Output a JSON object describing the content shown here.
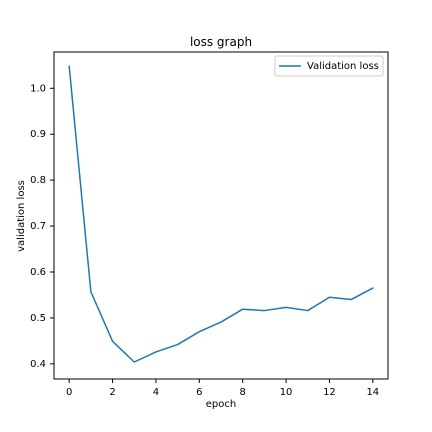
{
  "chart_data": {
    "type": "line",
    "title": "loss graph",
    "xlabel": "epoch",
    "ylabel": "validation loss",
    "xlim": [
      -0.7,
      14.7
    ],
    "ylim": [
      0.367,
      1.079
    ],
    "xticks": [
      0,
      2,
      4,
      6,
      8,
      10,
      12,
      14
    ],
    "yticks": [
      0.4,
      0.5,
      0.6,
      0.7,
      0.8,
      0.9,
      1.0
    ],
    "grid": false,
    "legend": {
      "position": "top-right",
      "entries": [
        "Validation loss"
      ]
    },
    "series": [
      {
        "name": "Validation loss",
        "color": "#1f77b4",
        "x": [
          0,
          1,
          2,
          3,
          4,
          5,
          6,
          7,
          8,
          9,
          10,
          11,
          12,
          13,
          14
        ],
        "values": [
          1.048,
          0.557,
          0.449,
          0.404,
          0.426,
          0.442,
          0.47,
          0.491,
          0.519,
          0.516,
          0.523,
          0.516,
          0.545,
          0.54,
          0.565
        ]
      }
    ]
  }
}
